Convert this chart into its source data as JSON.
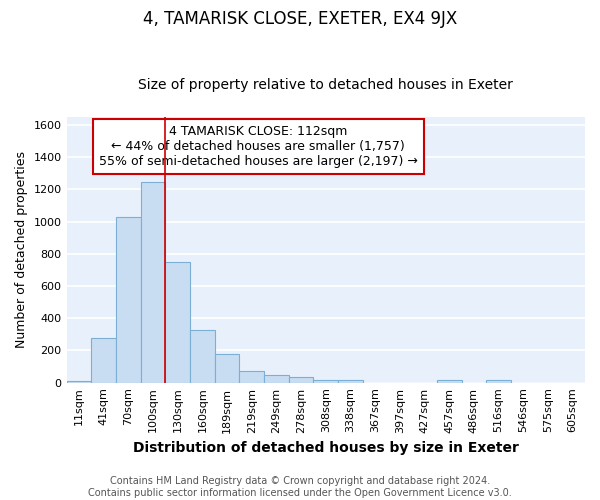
{
  "title": "4, TAMARISK CLOSE, EXETER, EX4 9JX",
  "subtitle": "Size of property relative to detached houses in Exeter",
  "xlabel": "Distribution of detached houses by size in Exeter",
  "ylabel": "Number of detached properties",
  "categories": [
    "11sqm",
    "41sqm",
    "70sqm",
    "100sqm",
    "130sqm",
    "160sqm",
    "189sqm",
    "219sqm",
    "249sqm",
    "278sqm",
    "308sqm",
    "338sqm",
    "367sqm",
    "397sqm",
    "427sqm",
    "457sqm",
    "486sqm",
    "516sqm",
    "546sqm",
    "575sqm",
    "605sqm"
  ],
  "values": [
    10,
    280,
    1030,
    1245,
    750,
    325,
    175,
    75,
    50,
    35,
    15,
    15,
    0,
    0,
    0,
    15,
    0,
    15,
    0,
    0,
    0
  ],
  "bar_color": "#c9ddf2",
  "bar_edgecolor": "#7bafd4",
  "bar_linewidth": 0.8,
  "vline_x": 3.5,
  "vline_color": "#cc0000",
  "vline_linewidth": 1.2,
  "annotation_text": "4 TAMARISK CLOSE: 112sqm\n← 44% of detached houses are smaller (1,757)\n55% of semi-detached houses are larger (2,197) →",
  "annotation_box_edgecolor": "#cc0000",
  "annotation_box_facecolor": "white",
  "ylim": [
    0,
    1650
  ],
  "yticks": [
    0,
    200,
    400,
    600,
    800,
    1000,
    1200,
    1400,
    1600
  ],
  "footnote": "Contains HM Land Registry data © Crown copyright and database right 2024.\nContains public sector information licensed under the Open Government Licence v3.0.",
  "background_color": "#e8f0fb",
  "grid_color": "white",
  "title_fontsize": 12,
  "subtitle_fontsize": 10,
  "xlabel_fontsize": 10,
  "ylabel_fontsize": 9,
  "tick_fontsize": 8,
  "annotation_fontsize": 9,
  "footnote_fontsize": 7
}
